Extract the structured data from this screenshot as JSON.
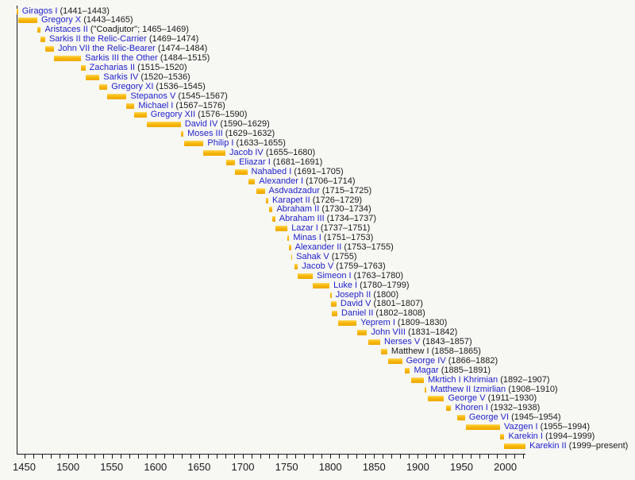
{
  "background": "#f7f7f4",
  "colors": {
    "bar_top": "#ffd95a",
    "bar_mid": "#f7b70a",
    "bar_bottom": "#eda904",
    "link_blue": "#2222cc",
    "text_black": "#1a1a1a",
    "axis_color": "#1a1a1a"
  },
  "chart_data": {
    "type": "bar",
    "variant": "horizontal-timeline",
    "title": "",
    "xlabel": "",
    "ylabel": "",
    "grid": false,
    "legend": false,
    "x_axis": {
      "min": 1441,
      "max": 2023,
      "minor_tick_start": 1450,
      "minor_tick_step": 10,
      "minor_tick_end": 2020,
      "tick_labels": [
        "1450",
        "1500",
        "1550",
        "1600",
        "1650",
        "1700",
        "1750",
        "1800",
        "1850",
        "1900",
        "1950",
        "2000"
      ],
      "label_values": [
        1450,
        1500,
        1550,
        1600,
        1650,
        1700,
        1750,
        1800,
        1850,
        1900,
        1950,
        2000
      ]
    },
    "entries": [
      {
        "name": "Giragos I",
        "dates": "(1441–1443)",
        "start": 1441,
        "end": 1443,
        "link": true
      },
      {
        "name": "Gregory X",
        "dates": "(1443–1465)",
        "start": 1443,
        "end": 1465,
        "link": true
      },
      {
        "name": "Aristaces II",
        "dates": "(\"Coadjutor\"; 1465–1469)",
        "start": 1465,
        "end": 1469,
        "link": true
      },
      {
        "name": "Sarkis II the Relic-Carrier",
        "dates": "(1469–1474)",
        "start": 1469,
        "end": 1474,
        "link": true
      },
      {
        "name": "John VII the Relic-Bearer",
        "dates": "(1474–1484)",
        "start": 1474,
        "end": 1484,
        "link": true
      },
      {
        "name": "Sarkis III the Other",
        "dates": "(1484–1515)",
        "start": 1484,
        "end": 1515,
        "link": true
      },
      {
        "name": "Zacharias II",
        "dates": "(1515–1520)",
        "start": 1515,
        "end": 1520,
        "link": true
      },
      {
        "name": "Sarkis IV",
        "dates": "(1520–1536)",
        "start": 1520,
        "end": 1536,
        "link": true
      },
      {
        "name": "Gregory XI",
        "dates": "(1536–1545)",
        "start": 1536,
        "end": 1545,
        "link": true
      },
      {
        "name": "Stepanos V",
        "dates": "(1545–1567)",
        "start": 1545,
        "end": 1567,
        "link": true
      },
      {
        "name": "Michael I",
        "dates": "(1567–1576)",
        "start": 1567,
        "end": 1576,
        "link": true
      },
      {
        "name": "Gregory XII",
        "dates": "(1576–1590)",
        "start": 1576,
        "end": 1590,
        "link": true
      },
      {
        "name": "David IV",
        "dates": "(1590–1629)",
        "start": 1590,
        "end": 1629,
        "link": true
      },
      {
        "name": "Moses III",
        "dates": "(1629–1632)",
        "start": 1629,
        "end": 1632,
        "link": true
      },
      {
        "name": "Philip I",
        "dates": "(1633–1655)",
        "start": 1633,
        "end": 1655,
        "link": true
      },
      {
        "name": "Jacob IV",
        "dates": "(1655–1680)",
        "start": 1655,
        "end": 1680,
        "link": true
      },
      {
        "name": "Eliazar I",
        "dates": "(1681–1691)",
        "start": 1681,
        "end": 1691,
        "link": true
      },
      {
        "name": "Nahabed I",
        "dates": "(1691–1705)",
        "start": 1691,
        "end": 1705,
        "link": true
      },
      {
        "name": "Alexander I",
        "dates": "(1706–1714)",
        "start": 1706,
        "end": 1714,
        "link": true
      },
      {
        "name": "Asdvadzadur",
        "dates": "(1715–1725)",
        "start": 1715,
        "end": 1725,
        "link": true
      },
      {
        "name": "Karapet II",
        "dates": "(1726–1729)",
        "start": 1726,
        "end": 1729,
        "link": true
      },
      {
        "name": "Abraham II",
        "dates": "(1730–1734)",
        "start": 1730,
        "end": 1734,
        "link": true
      },
      {
        "name": "Abraham III",
        "dates": "(1734–1737)",
        "start": 1734,
        "end": 1737,
        "link": true
      },
      {
        "name": "Lazar I",
        "dates": "(1737–1751)",
        "start": 1737,
        "end": 1751,
        "link": true
      },
      {
        "name": "Minas I",
        "dates": "(1751–1753)",
        "start": 1751,
        "end": 1753,
        "link": true
      },
      {
        "name": "Alexander II",
        "dates": "(1753–1755)",
        "start": 1753,
        "end": 1755,
        "link": true
      },
      {
        "name": "Sahak V",
        "dates": "(1755)",
        "start": 1755,
        "end": 1755,
        "link": true
      },
      {
        "name": "Jacob V",
        "dates": "(1759–1763)",
        "start": 1759,
        "end": 1763,
        "link": true
      },
      {
        "name": "Simeon I",
        "dates": "(1763–1780)",
        "start": 1763,
        "end": 1780,
        "link": true
      },
      {
        "name": "Luke I",
        "dates": "(1780–1799)",
        "start": 1780,
        "end": 1799,
        "link": true
      },
      {
        "name": "Joseph II",
        "dates": "(1800)",
        "start": 1800,
        "end": 1800,
        "link": true
      },
      {
        "name": "David V",
        "dates": "(1801–1807)",
        "start": 1801,
        "end": 1807,
        "link": true
      },
      {
        "name": "Daniel II",
        "dates": "(1802–1808)",
        "start": 1802,
        "end": 1808,
        "link": true
      },
      {
        "name": "Yeprem I",
        "dates": "(1809–1830)",
        "start": 1809,
        "end": 1830,
        "link": true
      },
      {
        "name": "John VIII",
        "dates": "(1831–1842)",
        "start": 1831,
        "end": 1842,
        "link": true
      },
      {
        "name": "Nerses V",
        "dates": "(1843–1857)",
        "start": 1843,
        "end": 1857,
        "link": true
      },
      {
        "name": "Matthew I",
        "dates": "(1858–1865)",
        "start": 1858,
        "end": 1865,
        "link": false
      },
      {
        "name": "George IV",
        "dates": "(1866–1882)",
        "start": 1866,
        "end": 1882,
        "link": true
      },
      {
        "name": "Magar",
        "dates": "(1885–1891)",
        "start": 1885,
        "end": 1891,
        "link": true
      },
      {
        "name": "Mkrtich I Khrimian",
        "dates": "(1892–1907)",
        "start": 1892,
        "end": 1907,
        "link": true
      },
      {
        "name": "Matthew II Izmirlian",
        "dates": "(1908–1910)",
        "start": 1908,
        "end": 1910,
        "link": true
      },
      {
        "name": "George V",
        "dates": "(1911–1930)",
        "start": 1911,
        "end": 1930,
        "link": true
      },
      {
        "name": "Khoren I",
        "dates": "(1932–1938)",
        "start": 1932,
        "end": 1938,
        "link": true
      },
      {
        "name": "George VI",
        "dates": "(1945–1954)",
        "start": 1945,
        "end": 1954,
        "link": true
      },
      {
        "name": "Vazgen I",
        "dates": "(1955–1994)",
        "start": 1955,
        "end": 1994,
        "link": true
      },
      {
        "name": "Karekin I",
        "dates": "(1994–1999)",
        "start": 1994,
        "end": 1999,
        "link": true
      },
      {
        "name": "Karekin II",
        "dates": "(1999–present)",
        "start": 1999,
        "end": 2023.2,
        "link": true
      }
    ]
  }
}
